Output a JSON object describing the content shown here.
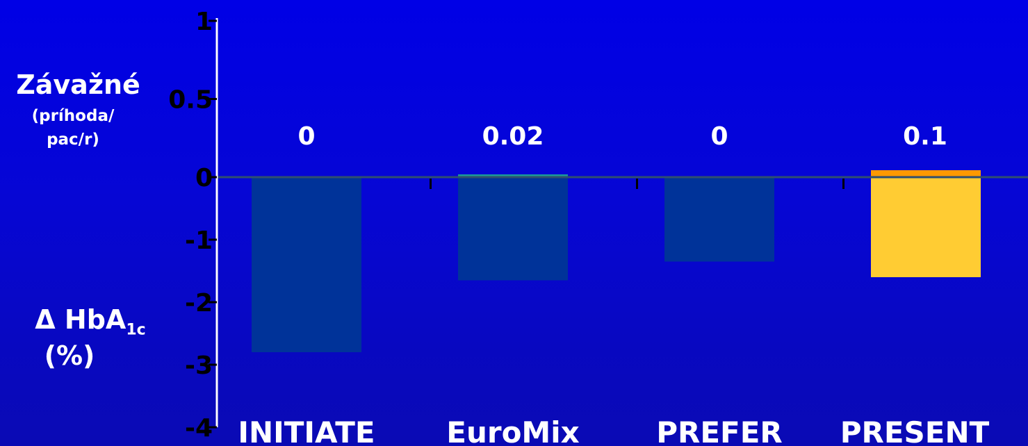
{
  "left_labels": {
    "serious_title": "Závažné",
    "serious_unit_line1": "(príhoda/",
    "serious_unit_line2": "pac/r)",
    "hba1c_prefix": "Δ HbA",
    "hba1c_sub": "1c",
    "hba1c_unit": "(%)"
  },
  "colors": {
    "bar_default": "#003399",
    "bar_highlight": "#ffcc33",
    "top_bar_euromix": "#1a9a9a",
    "top_bar_present": "#ff9900",
    "axis": "#ffffff",
    "zero_line": "#2f4f6f"
  },
  "chart_data": {
    "type": "bar",
    "categories": [
      "INITIATE",
      "EuroMix",
      "PREFER",
      "PRESENT"
    ],
    "series": [
      {
        "values": [
          -2.8,
          -1.65,
          -1.35,
          -1.6
        ]
      },
      {
        "values": [
          0,
          0.02,
          0,
          0.1
        ]
      }
    ],
    "data_labels": [
      "0",
      "0.02",
      "0",
      "0.1"
    ],
    "highlight": "PRESENT",
    "yticks": [
      {
        "value": 1,
        "label": "1"
      },
      {
        "value": 0.5,
        "label": "0.5"
      },
      {
        "value": 0,
        "label": "0"
      },
      {
        "value": -1,
        "label": "-1"
      },
      {
        "value": -2,
        "label": "-2"
      },
      {
        "value": -3,
        "label": "-3"
      },
      {
        "value": -4,
        "label": "-4"
      }
    ],
    "ylim": [
      -4,
      1
    ],
    "grid": false,
    "legend": "none"
  }
}
